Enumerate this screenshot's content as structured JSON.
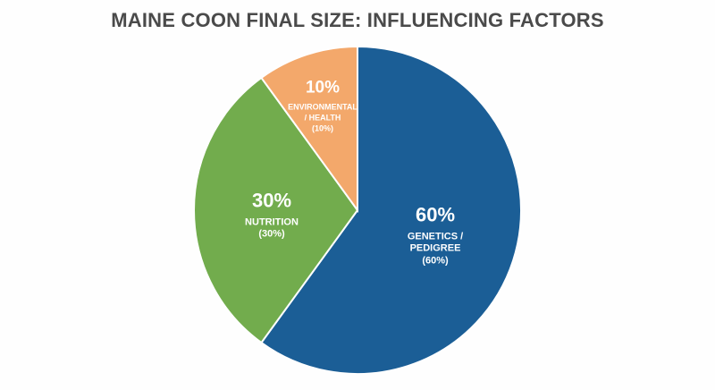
{
  "title": "MAINE COON FINAL SIZE: INFLUENCING FACTORS",
  "chart_data": {
    "type": "pie",
    "title": "MAINE COON FINAL SIZE: INFLUENCING FACTORS",
    "categories": [
      "Genetics / Pedigree",
      "Nutrition",
      "Environmental / Health"
    ],
    "values": [
      60,
      30,
      10
    ],
    "unit": "%",
    "colors": [
      "#1b5e96",
      "#72ac4d",
      "#f3a86b"
    ],
    "start_angle": "12 o'clock, clockwise",
    "legend": "none (labels inside slices)"
  },
  "labels": {
    "genetics": {
      "pct": "60%",
      "line1": "GENETICS /",
      "line2": "PEDIGREE",
      "line3": "(60%)"
    },
    "nutrition": {
      "pct": "30%",
      "line1": "NUTRITION",
      "line2": "(30%)"
    },
    "environmental": {
      "pct": "10%",
      "line1": "ENVIRONMENTAL",
      "line2": "/ HEALTH",
      "line3": "(10%)"
    }
  }
}
